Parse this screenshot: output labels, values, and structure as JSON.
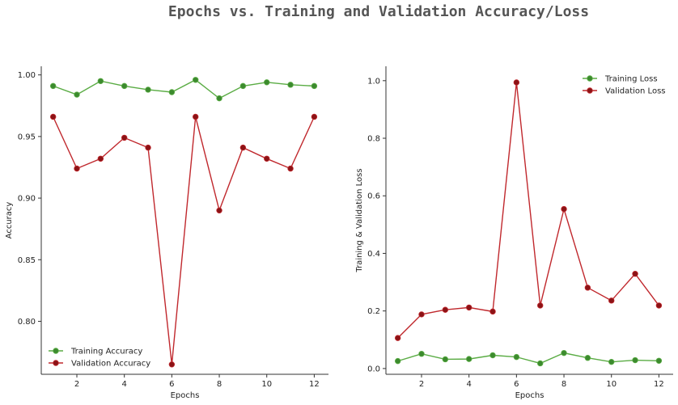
{
  "title": "Epochs vs. Training and Validation Accuracy/Loss",
  "colors": {
    "training": "#5aac44",
    "validation": "#c0282d",
    "training_dark": "#3c8a2e",
    "validation_dark": "#8b1316"
  },
  "chart_data": [
    {
      "type": "line",
      "xlabel": "Epochs",
      "ylabel": "Accuracy",
      "x": [
        1,
        2,
        3,
        4,
        5,
        6,
        7,
        8,
        9,
        10,
        11,
        12
      ],
      "xlim": [
        0.5,
        12.6
      ],
      "ylim": [
        0.757,
        1.007
      ],
      "xticks": [
        "2",
        "4",
        "6",
        "8",
        "10",
        "12"
      ],
      "yticks": [
        "0.80",
        "0.85",
        "0.90",
        "0.95",
        "1.00"
      ],
      "legend_position": "lower-left",
      "series": [
        {
          "name": "Training Accuracy",
          "values": [
            0.991,
            0.984,
            0.995,
            0.991,
            0.988,
            0.986,
            0.996,
            0.981,
            0.991,
            0.994,
            0.992,
            0.991
          ]
        },
        {
          "name": "Validation Accuracy",
          "values": [
            0.966,
            0.924,
            0.932,
            0.949,
            0.941,
            0.765,
            0.966,
            0.89,
            0.941,
            0.932,
            0.924,
            0.966
          ]
        }
      ]
    },
    {
      "type": "line",
      "xlabel": "Epochs",
      "ylabel": "Training & Validation Loss",
      "x": [
        1,
        2,
        3,
        4,
        5,
        6,
        7,
        8,
        9,
        10,
        11,
        12
      ],
      "xlim": [
        0.5,
        12.6
      ],
      "ylim": [
        -0.02,
        1.05
      ],
      "xticks": [
        "2",
        "4",
        "6",
        "8",
        "10",
        "12"
      ],
      "yticks": [
        "0.0",
        "0.2",
        "0.4",
        "0.6",
        "0.8",
        "1.0"
      ],
      "legend_position": "upper-right",
      "series": [
        {
          "name": "Training Loss",
          "values": [
            0.026,
            0.051,
            0.032,
            0.033,
            0.046,
            0.04,
            0.018,
            0.054,
            0.037,
            0.023,
            0.029,
            0.027
          ]
        },
        {
          "name": "Validation Loss",
          "values": [
            0.106,
            0.188,
            0.204,
            0.212,
            0.198,
            0.994,
            0.219,
            0.554,
            0.281,
            0.236,
            0.329,
            0.219
          ]
        }
      ]
    }
  ]
}
